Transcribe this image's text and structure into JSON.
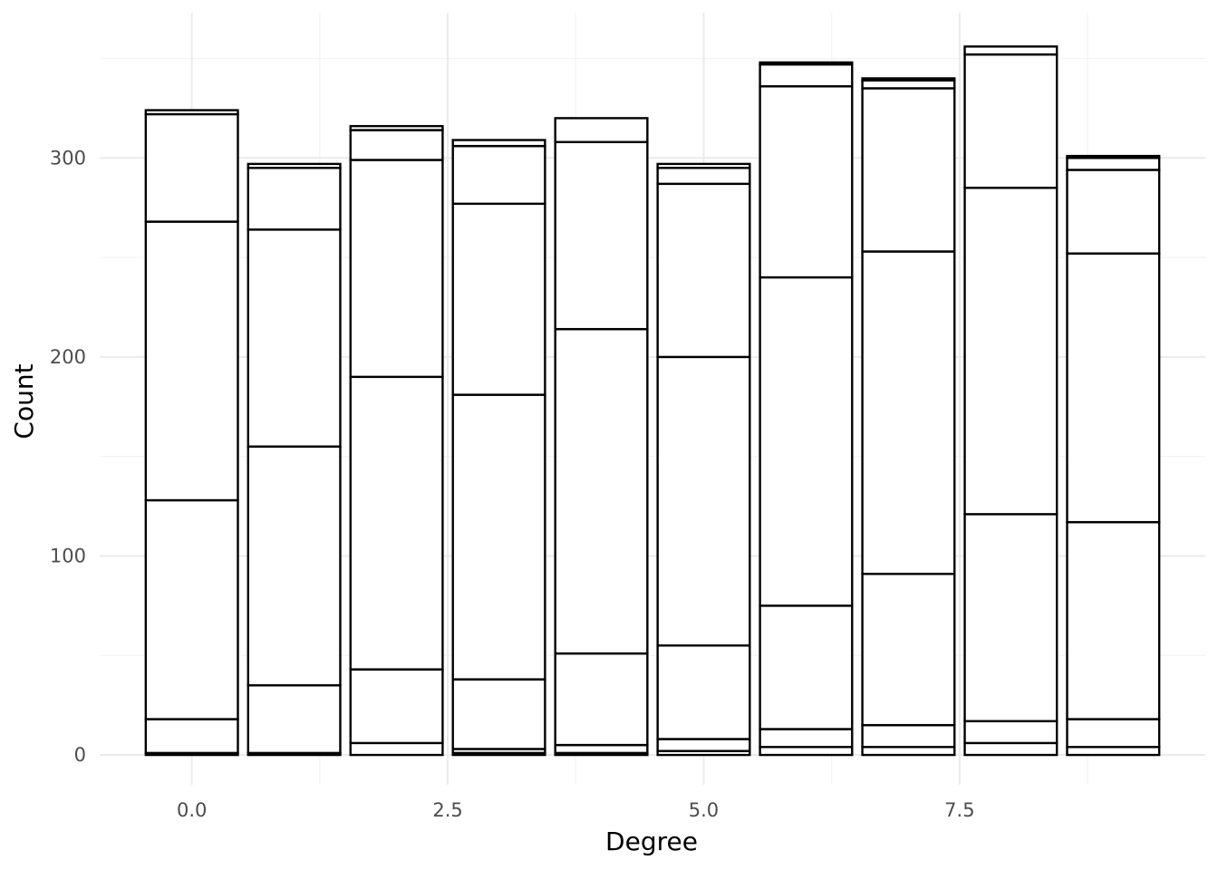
{
  "chart_data": {
    "type": "bar",
    "stacked": true,
    "xlabel": "Degree",
    "ylabel": "Count",
    "xlim": [
      -0.9,
      9.9
    ],
    "ylim": [
      -15,
      373
    ],
    "x_ticks": [
      {
        "value": 0,
        "label": "0.0"
      },
      {
        "value": 2.5,
        "label": "2.5"
      },
      {
        "value": 5,
        "label": "5.0"
      },
      {
        "value": 7.5,
        "label": "7.5"
      }
    ],
    "y_ticks": [
      {
        "value": 0,
        "label": "0"
      },
      {
        "value": 100,
        "label": "100"
      },
      {
        "value": 200,
        "label": "200"
      },
      {
        "value": 300,
        "label": "300"
      }
    ],
    "grid": true,
    "legend": "none",
    "bar_fill": "#ffffff",
    "bar_stroke": "#000000",
    "x": [
      0,
      1,
      2,
      3,
      4,
      5,
      6,
      7,
      8,
      9
    ],
    "stack_boundaries": [
      [
        0,
        1,
        18,
        128,
        268,
        322,
        324
      ],
      [
        0,
        1,
        35,
        155,
        264,
        295,
        297
      ],
      [
        0,
        6,
        43,
        190,
        299,
        314,
        316
      ],
      [
        0,
        1,
        3,
        38,
        181,
        277,
        306,
        309
      ],
      [
        0,
        1,
        5,
        51,
        214,
        308,
        320
      ],
      [
        0,
        2,
        8,
        55,
        200,
        287,
        295,
        297
      ],
      [
        0,
        4,
        13,
        75,
        240,
        336,
        347,
        348
      ],
      [
        0,
        4,
        15,
        91,
        253,
        335,
        339,
        340
      ],
      [
        0,
        6,
        17,
        121,
        285,
        352,
        356
      ],
      [
        0,
        4,
        18,
        117,
        252,
        294,
        300,
        301
      ]
    ]
  }
}
